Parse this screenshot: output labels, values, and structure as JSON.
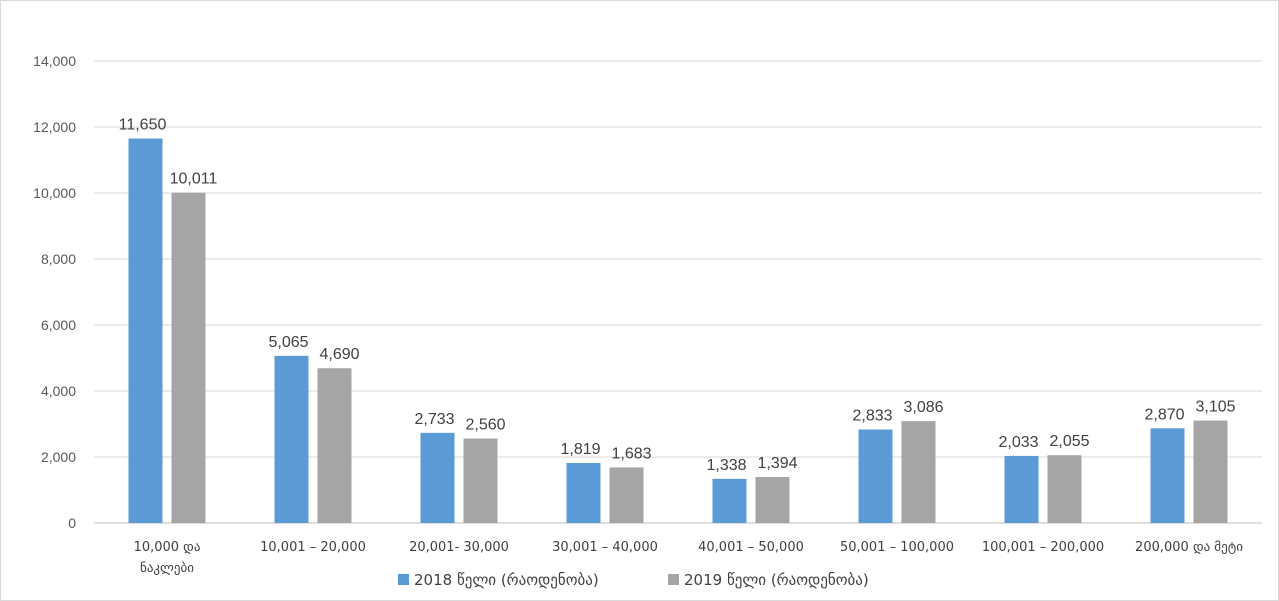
{
  "chart_data": {
    "type": "bar",
    "categories": [
      [
        "10,000 და",
        "ნაკლები"
      ],
      [
        "10,001 – 20,000"
      ],
      [
        "20,001- 30,000"
      ],
      [
        "30,001 – 40,000"
      ],
      [
        "40,001 – 50,000"
      ],
      [
        "50,001 – 100,000"
      ],
      [
        "100,001 – 200,000"
      ],
      [
        "200,000 და მეტი"
      ]
    ],
    "series": [
      {
        "name": "2018 წელი (რაოდენობა)",
        "color": "#5b9bd5",
        "values": [
          11650,
          5065,
          2733,
          1819,
          1338,
          2833,
          2033,
          2870
        ],
        "labels": [
          "11,650",
          "5,065",
          "2,733",
          "1,819",
          "1,338",
          "2,833",
          "2,033",
          "2,870"
        ]
      },
      {
        "name": "2019 წელი (რაოდენობა)",
        "color": "#a5a5a5",
        "values": [
          10011,
          4690,
          2560,
          1683,
          1394,
          3086,
          2055,
          3105
        ],
        "labels": [
          "10,011",
          "4,690",
          "2,560",
          "1,683",
          "1,394",
          "3,086",
          "2,055",
          "3,105"
        ]
      }
    ],
    "yticks": [
      0,
      2000,
      4000,
      6000,
      8000,
      10000,
      12000,
      14000
    ],
    "ytick_labels": [
      "0",
      "2,000",
      "4,000",
      "6,000",
      "8,000",
      "10,000",
      "12,000",
      "14,000"
    ],
    "ylim": [
      0,
      14000
    ],
    "grid": true,
    "legend_position": "bottom"
  }
}
